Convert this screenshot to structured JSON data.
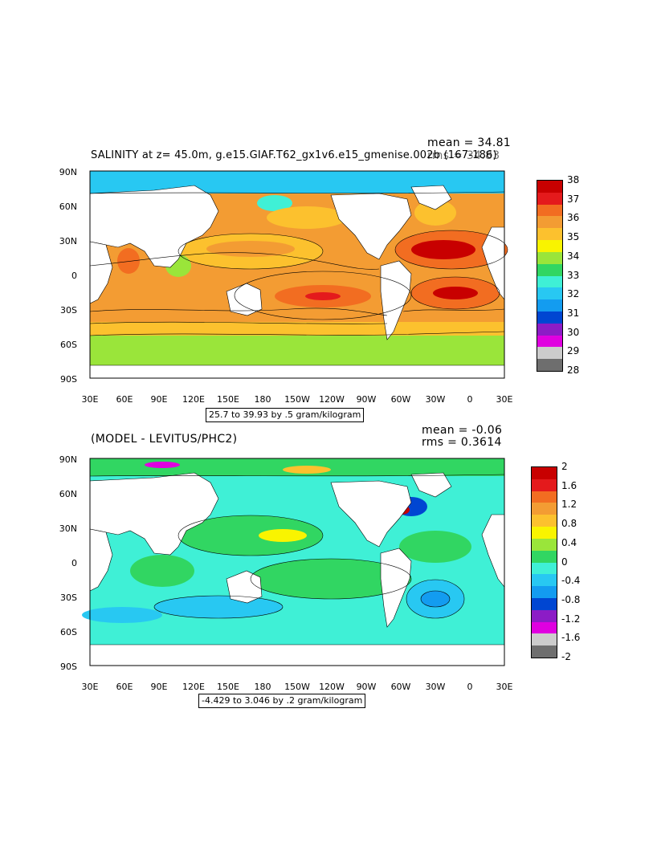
{
  "panel1": {
    "title": "SALINITY at z=  45.0m, g.e15.GIAF.T62_gx1v6.e15_gmenise.002b (167-186)",
    "mean_text": "mean = 34.81",
    "rms_text": "rms = 34.83",
    "range_text": "25.7 to 39.93 by .5 gram/kilogram",
    "lat_labels": [
      "90N",
      "60N",
      "30N",
      "0",
      "30S",
      "60S",
      "90S"
    ],
    "lon_labels": [
      "30E",
      "60E",
      "90E",
      "120E",
      "150E",
      "180",
      "150W",
      "120W",
      "90W",
      "60W",
      "30W",
      "0",
      "30E"
    ],
    "colorbar": {
      "labels": [
        "38",
        "37",
        "36",
        "35",
        "34",
        "33",
        "32",
        "31",
        "30",
        "29",
        "28"
      ],
      "colors": [
        "#c80000",
        "#e41a1c",
        "#f26d21",
        "#f39c33",
        "#fcc12e",
        "#f9f400",
        "#9ae53a",
        "#31d662",
        "#3ff0d6",
        "#28c8f2",
        "#139cf0",
        "#0046d2",
        "#8c1cc6",
        "#e000e0",
        "#cccccc",
        "#6e6e6e"
      ]
    }
  },
  "panel2": {
    "title": "(MODEL - LEVITUS/PHC2)",
    "mean_text": "mean = -0.06",
    "rms_text": "rms = 0.3614",
    "range_text": "-4.429 to 3.046 by .2 gram/kilogram",
    "lat_labels": [
      "90N",
      "60N",
      "30N",
      "0",
      "30S",
      "60S",
      "90S"
    ],
    "lon_labels": [
      "30E",
      "60E",
      "90E",
      "120E",
      "150E",
      "180",
      "150W",
      "120W",
      "90W",
      "60W",
      "30W",
      "0",
      "30E"
    ],
    "colorbar": {
      "labels": [
        "2",
        "1.6",
        "1.2",
        "0.8",
        "0.4",
        "0",
        "-0.4",
        "-0.8",
        "-1.2",
        "-1.6",
        "-2"
      ],
      "colors": [
        "#c80000",
        "#e41a1c",
        "#f26d21",
        "#f39c33",
        "#fcc12e",
        "#f9f400",
        "#9ae53a",
        "#31d662",
        "#3ff0d6",
        "#28c8f2",
        "#139cf0",
        "#0046d2",
        "#8c1cc6",
        "#e000e0",
        "#cccccc",
        "#6e6e6e"
      ]
    }
  },
  "colors": {
    "land": "#ffffff",
    "frame": "#000000"
  }
}
